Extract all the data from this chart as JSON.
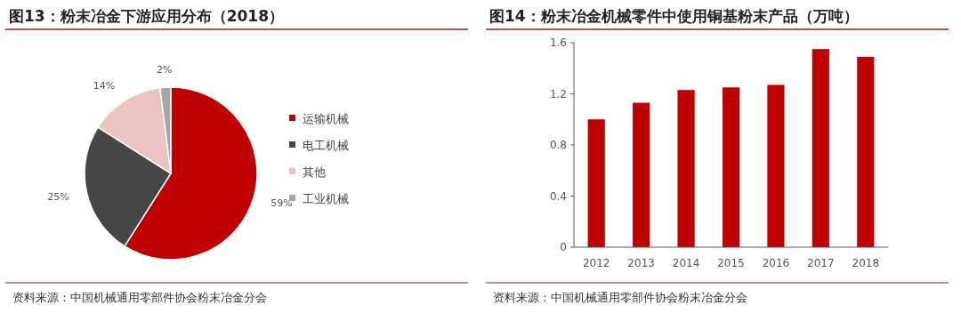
{
  "chart_data": [
    {
      "type": "pie",
      "title": "图13：粉末冶金下游应用分布（2018）",
      "categories": [
        "运输机械",
        "电工机械",
        "其他",
        "工业机械"
      ],
      "values": [
        59,
        25,
        14,
        2
      ],
      "colors": [
        "#c00000",
        "#464646",
        "#ebc3c3",
        "#a6a6a6"
      ],
      "value_labels": [
        "59%",
        "25%",
        "14%",
        "2%"
      ],
      "legend": "right",
      "annotations": [
        "资料来源：中国机械通用零部件协会粉末冶金分会"
      ]
    },
    {
      "type": "bar",
      "title": "图14：粉末冶金机械零件中使用铜基粉末产品（万吨）",
      "categories": [
        "2012",
        "2013",
        "2014",
        "2015",
        "2016",
        "2017",
        "2018"
      ],
      "values": [
        1.0,
        1.13,
        1.23,
        1.25,
        1.27,
        1.55,
        1.49
      ],
      "color": "#c00000",
      "ylim": [
        0,
        1.6
      ],
      "yticks": [
        0,
        0.4,
        0.8,
        1.2,
        1.6
      ],
      "grid": false,
      "annotations": [
        "资料来源：中国机械通用零部件协会粉末冶金分会"
      ]
    }
  ]
}
